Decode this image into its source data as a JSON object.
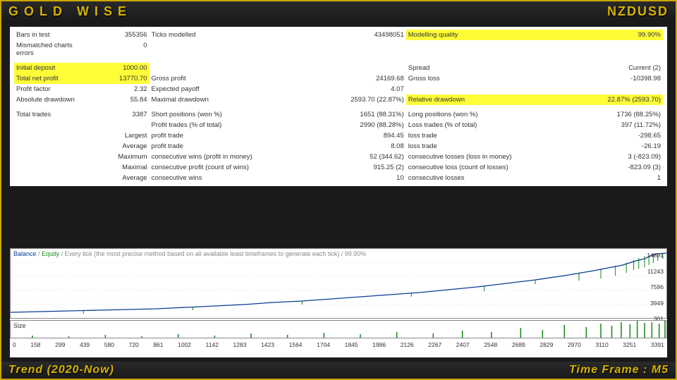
{
  "header": {
    "title": "GOLD WISE",
    "pair": "NZDUSD"
  },
  "footer": {
    "left": "Trend (2020-Now)",
    "right": "Time Frame : M5"
  },
  "stats": {
    "row1": {
      "c1l": "Bars in test",
      "c1v": "355356",
      "c2l": "Ticks modelled",
      "c2v": "43498051",
      "c3l": "Modelling quality",
      "c3v": "99.90%"
    },
    "row2": {
      "c1l": "Mismatched charts errors",
      "c1v": "0"
    },
    "row3": {
      "c1l": "Initial deposit",
      "c1v": "1000.00",
      "c3l": "Spread",
      "c3v": "Current (2)"
    },
    "row4": {
      "c1l": "Total net profit",
      "c1v": "13770.70",
      "c2l": "Gross profit",
      "c2v": "24169.68",
      "c3l": "Gross loss",
      "c3v": "-10398.98"
    },
    "row5": {
      "c1l": "Profit factor",
      "c1v": "2.32",
      "c2l": "Expected payoff",
      "c2v": "4.07"
    },
    "row6": {
      "c1l": "Absolute drawdown",
      "c1v": "55.84",
      "c2l": "Maximal drawdown",
      "c2v": "2593.70 (22.87%)",
      "c3l": "Relative drawdown",
      "c3v": "22.87% (2593.70)"
    },
    "row7": {
      "c1l": "Total trades",
      "c1v": "3387",
      "c2l": "Short positions (won %)",
      "c2v": "1651 (88.31%)",
      "c3l": "Long positions (won %)",
      "c3v": "1736 (88.25%)"
    },
    "row8": {
      "c2l": "Profit trades (% of total)",
      "c2v": "2990 (88.28%)",
      "c3l": "Loss trades (% of total)",
      "c3v": "397 (11.72%)"
    },
    "row9": {
      "c1v": "Largest",
      "c2l": "profit trade",
      "c2v": "894.45",
      "c3l": "loss trade",
      "c3v": "-298.65"
    },
    "row10": {
      "c1v": "Average",
      "c2l": "profit trade",
      "c2v": "8.08",
      "c3l": "loss trade",
      "c3v": "-26.19"
    },
    "row11": {
      "c1v": "Maximum",
      "c2l": "consecutive wins (profit in money)",
      "c2v": "52 (344.62)",
      "c3l": "consecutive losses (loss in money)",
      "c3v": "3 (-823.09)"
    },
    "row12": {
      "c1v": "Maximal",
      "c2l": "consecutive profit (count of wins)",
      "c2v": "915.25 (2)",
      "c3l": "consecutive loss (count of losses)",
      "c3v": "-823.09 (3)"
    },
    "row13": {
      "c1v": "Average",
      "c2l": "consecutive wins",
      "c2v": "10",
      "c3l": "consecutive losses",
      "c3v": "1"
    }
  },
  "chart": {
    "legend_balance": "Balance",
    "legend_equity": "Equity",
    "legend_rest": "Every tick (the most precise method based on all available least timeframes to generate each tick) / 99.90%",
    "size_label": "Size",
    "y_ticks": [
      "14891",
      "11243",
      "7596",
      "3949",
      "301"
    ],
    "x_ticks": [
      "0",
      "158",
      "299",
      "439",
      "580",
      "720",
      "861",
      "1002",
      "1142",
      "1283",
      "1423",
      "1564",
      "1704",
      "1845",
      "1986",
      "2126",
      "2267",
      "2407",
      "2548",
      "2689",
      "2829",
      "2970",
      "3110",
      "3251",
      "3391"
    ],
    "colors": {
      "balance_line": "#0a3d91",
      "equity_line": "#1a8a1a",
      "grid": "#ddd",
      "axis": "#888"
    },
    "balance_data": [
      [
        0,
        90
      ],
      [
        40,
        89
      ],
      [
        80,
        88
      ],
      [
        120,
        87
      ],
      [
        160,
        86
      ],
      [
        200,
        85
      ],
      [
        240,
        83
      ],
      [
        280,
        81
      ],
      [
        320,
        79
      ],
      [
        360,
        76
      ],
      [
        400,
        74
      ],
      [
        440,
        71
      ],
      [
        480,
        68
      ],
      [
        520,
        65
      ],
      [
        560,
        62
      ],
      [
        600,
        58
      ],
      [
        640,
        54
      ],
      [
        680,
        49
      ],
      [
        720,
        44
      ],
      [
        760,
        38
      ],
      [
        800,
        31
      ],
      [
        840,
        23
      ],
      [
        858,
        17
      ],
      [
        870,
        14
      ],
      [
        880,
        9
      ],
      [
        888,
        7
      ],
      [
        900,
        6
      ]
    ],
    "equity_dips": [
      [
        100,
        88,
        92
      ],
      [
        250,
        83,
        87
      ],
      [
        400,
        74,
        79
      ],
      [
        550,
        63,
        68
      ],
      [
        650,
        52,
        60
      ],
      [
        720,
        44,
        50
      ],
      [
        780,
        35,
        45
      ],
      [
        810,
        28,
        42
      ],
      [
        830,
        24,
        38
      ],
      [
        845,
        20,
        34
      ],
      [
        855,
        16,
        30
      ],
      [
        862,
        13,
        28
      ],
      [
        870,
        10,
        26
      ],
      [
        876,
        8,
        23
      ],
      [
        882,
        7,
        20
      ],
      [
        888,
        6,
        17
      ],
      [
        895,
        6,
        14
      ],
      [
        900,
        5,
        5
      ]
    ],
    "size_bars": [
      [
        30,
        3
      ],
      [
        80,
        2
      ],
      [
        130,
        4
      ],
      [
        180,
        2
      ],
      [
        230,
        5
      ],
      [
        280,
        3
      ],
      [
        330,
        6
      ],
      [
        380,
        4
      ],
      [
        430,
        7
      ],
      [
        480,
        5
      ],
      [
        530,
        8
      ],
      [
        580,
        6
      ],
      [
        620,
        10
      ],
      [
        660,
        8
      ],
      [
        700,
        14
      ],
      [
        730,
        11
      ],
      [
        760,
        18
      ],
      [
        790,
        15
      ],
      [
        810,
        20
      ],
      [
        825,
        17
      ],
      [
        838,
        22
      ],
      [
        850,
        19
      ],
      [
        860,
        24
      ],
      [
        870,
        21
      ],
      [
        880,
        22
      ],
      [
        890,
        20
      ],
      [
        898,
        24
      ]
    ]
  }
}
